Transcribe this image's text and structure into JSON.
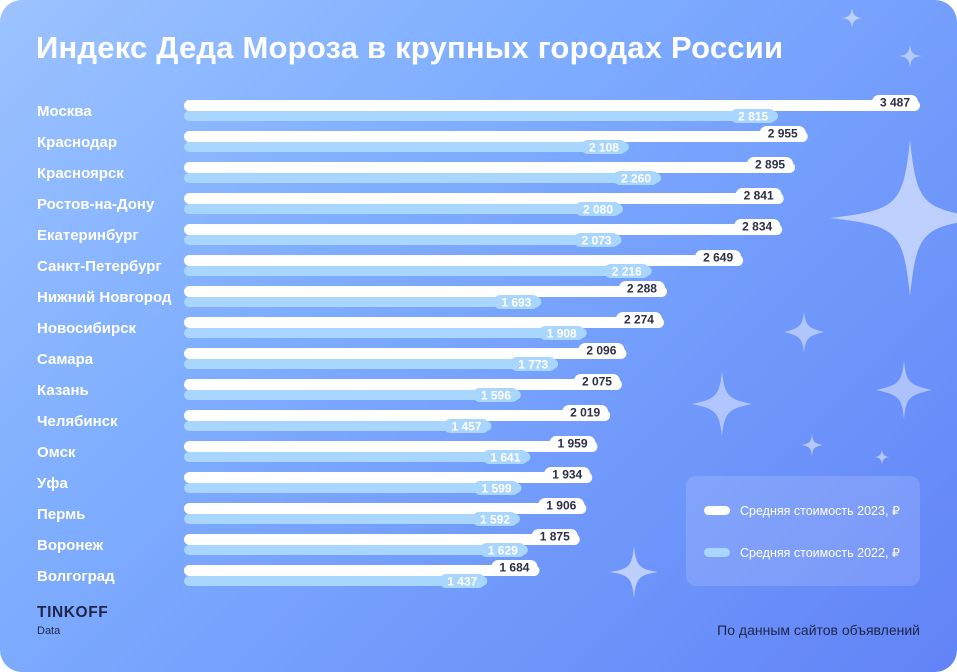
{
  "chart_data": {
    "type": "bar",
    "orientation": "horizontal",
    "title": "Индекс Деда Мороза в крупных городах России",
    "categories": [
      "Москва",
      "Краснодар",
      "Красноярск",
      "Ростов-на-Дону",
      "Екатеринбург",
      "Санкт-Петербург",
      "Нижний Новгород",
      "Новосибирск",
      "Самара",
      "Казань",
      "Челябинск",
      "Омск",
      "Уфа",
      "Пермь",
      "Воронеж",
      "Волгоград"
    ],
    "series": [
      {
        "name": "Средняя стоимость 2023, ₽",
        "color": "#ffffff",
        "values": [
          3487,
          2955,
          2895,
          2841,
          2834,
          2649,
          2288,
          2274,
          2096,
          2075,
          2019,
          1959,
          1934,
          1906,
          1875,
          1684
        ],
        "labels": [
          "3 487",
          "2 955",
          "2 895",
          "2 841",
          "2 834",
          "2 649",
          "2 288",
          "2 274",
          "2 096",
          "2 075",
          "2 019",
          "1 959",
          "1 934",
          "1 906",
          "1 875",
          "1 684"
        ]
      },
      {
        "name": "Средняя стоимость 2022, ₽",
        "color": "#a9d6ff",
        "values": [
          2815,
          2108,
          2260,
          2080,
          2073,
          2216,
          1693,
          1908,
          1773,
          1596,
          1457,
          1641,
          1599,
          1592,
          1629,
          1437
        ],
        "labels": [
          "2 815",
          "2 108",
          "2 260",
          "2 080",
          "2 073",
          "2 216",
          "1 693",
          "1 908",
          "1 773",
          "1 596",
          "1 457",
          "1 641",
          "1 599",
          "1 592",
          "1 629",
          "1 437"
        ]
      }
    ],
    "xlim": [
      0,
      3487
    ],
    "grid": false,
    "legend_position": "bottom-right"
  },
  "legend": {
    "item_2023": "Средняя стоимость 2023, ₽",
    "item_2022": "Средняя стоимость 2022, ₽"
  },
  "brand": {
    "name": "TINKOFF",
    "sub": "Data"
  },
  "source": "По данным сайтов объявлений",
  "colors": {
    "label_2023_text": "#2b2f45",
    "label_2022_text": "#ffffff",
    "label_2022_bg": "#a9d6ff"
  },
  "decor": {
    "sparkle_icon": "four-point-star-icon"
  }
}
